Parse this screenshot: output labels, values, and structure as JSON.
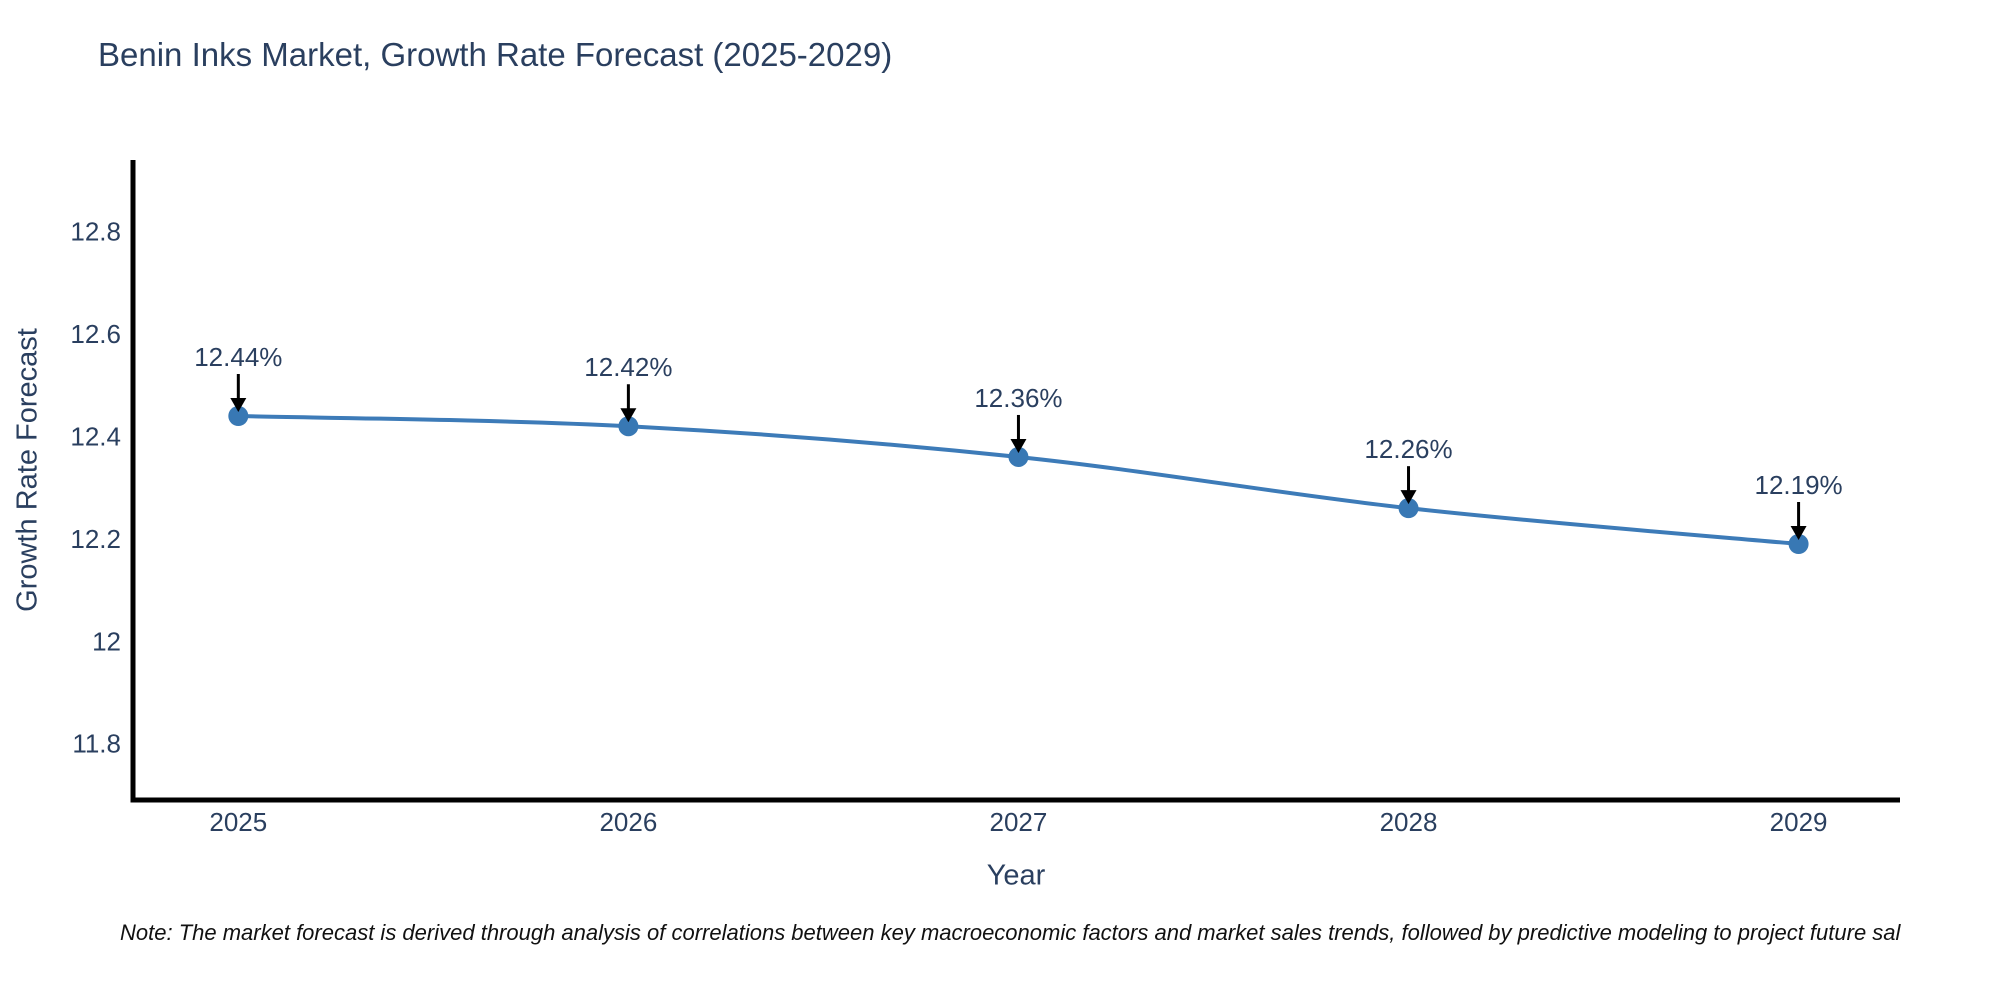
{
  "note": "Note: The market forecast is derived through analysis of correlations between key macroeconomic factors and market sales trends, followed by predictive modeling to project future sal",
  "chart_data": {
    "type": "line",
    "title": "Benin Inks Market, Growth Rate Forecast (2025-2029)",
    "xlabel": "Year",
    "ylabel": "Growth Rate Forecast",
    "x": [
      2025,
      2026,
      2027,
      2028,
      2029
    ],
    "xtick_labels": [
      "2025",
      "2026",
      "2027",
      "2028",
      "2029"
    ],
    "series": [
      {
        "name": "Growth Rate Forecast",
        "values": [
          12.44,
          12.42,
          12.36,
          12.26,
          12.19
        ]
      }
    ],
    "point_labels": [
      "12.44%",
      "12.42%",
      "12.36%",
      "12.26%",
      "12.19%"
    ],
    "yticks": [
      11.8,
      12,
      12.2,
      12.4,
      12.6,
      12.8
    ],
    "ytick_labels": [
      "11.8",
      "12",
      "12.2",
      "12.4",
      "12.6",
      "12.8"
    ],
    "xlim": [
      2024.73,
      2029.26
    ],
    "ylim": [
      11.69,
      12.94
    ],
    "grid": false,
    "legend": "none",
    "line_shape": "spline",
    "colors": {
      "line": "#3d7bb8",
      "marker": "#3878b4",
      "text": "#2a3f5f",
      "axis": "#000000",
      "arrow": "#000000",
      "note": "#111111"
    }
  }
}
